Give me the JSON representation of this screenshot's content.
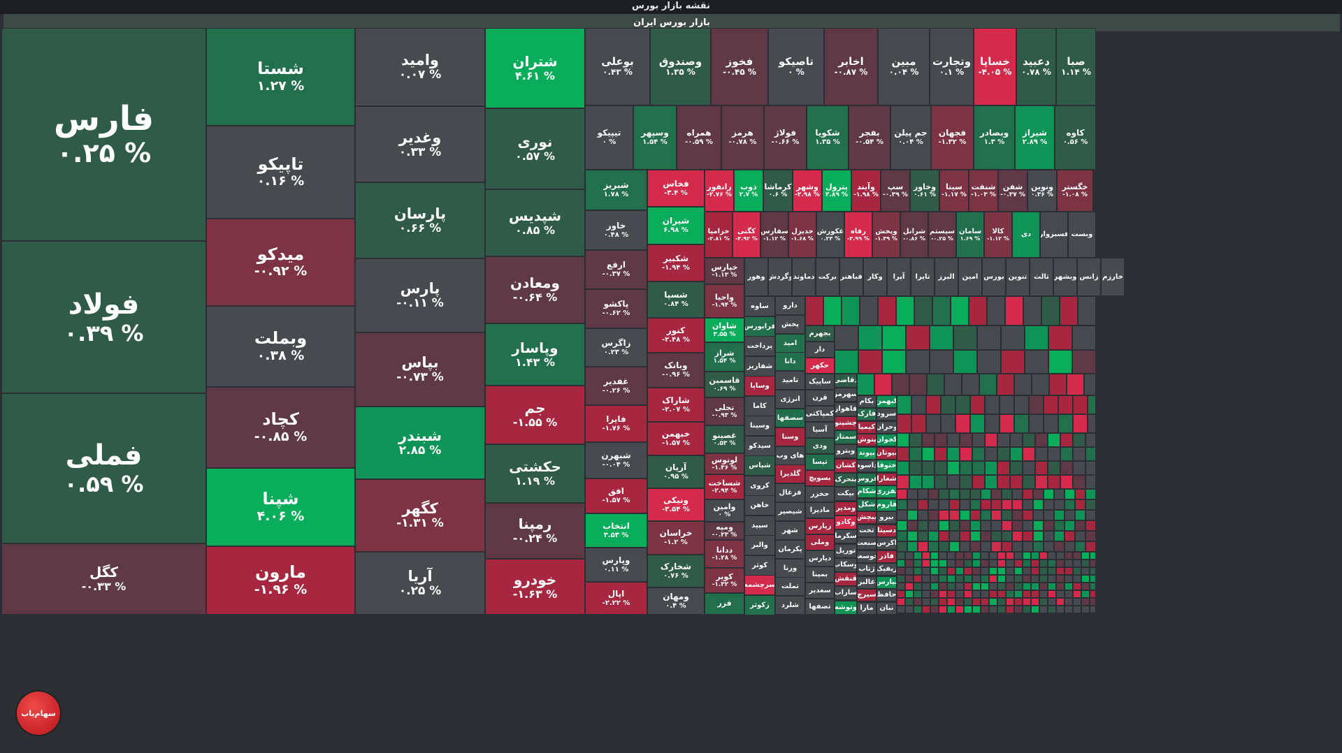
{
  "header": {
    "title": "نقشه بازار بورس",
    "subtitle": "بازار بورس ایران"
  },
  "logo": {
    "text": "سهام‌یاب"
  },
  "colors": {
    "strong_green": "#08ad5c",
    "green": "#0f9457",
    "dark_green": "#2f5b48",
    "neutral": "#474a4f",
    "dark_red": "#5f3945",
    "red": "#7d3344",
    "strong_red": "#d42a4b"
  },
  "tiles": [
    {
      "symbol": "فارس",
      "change": "۰.۲۵ %",
      "color": "g1"
    },
    {
      "symbol": "فولاد",
      "change": "۰.۳۹ %",
      "color": "g1"
    },
    {
      "symbol": "فملی",
      "change": "۰.۵۹ %",
      "color": "g1"
    },
    {
      "symbol": "کگل",
      "change": "-۰.۳۳ %",
      "color": "r1"
    },
    {
      "symbol": "شستا",
      "change": "۱.۲۷ %",
      "color": "g2"
    },
    {
      "symbol": "تاپیکو",
      "change": "۰.۱۶ %",
      "color": "n"
    },
    {
      "symbol": "میدکو",
      "change": "-۰.۹۲ %",
      "color": "r2"
    },
    {
      "symbol": "وبملت",
      "change": "۰.۳۸ %",
      "color": "n"
    },
    {
      "symbol": "کچاد",
      "change": "-۰.۸۵ %",
      "color": "r1"
    },
    {
      "symbol": "شپنا",
      "change": "۴.۰۶ %",
      "color": "g4"
    },
    {
      "symbol": "مارون",
      "change": "-۱.۹۶ %",
      "color": "r3"
    },
    {
      "symbol": "وامید",
      "change": "۰.۰۷ %",
      "color": "n"
    },
    {
      "symbol": "وغدیر",
      "change": "۰.۳۳ %",
      "color": "n"
    },
    {
      "symbol": "پارسان",
      "change": "۰.۶۶ %",
      "color": "g1"
    },
    {
      "symbol": "پارس",
      "change": "-۰.۱۱ %",
      "color": "n"
    },
    {
      "symbol": "بپاس",
      "change": "-۰.۷۳ %",
      "color": "r1"
    },
    {
      "symbol": "شبندر",
      "change": "۲.۸۵ %",
      "color": "g3"
    },
    {
      "symbol": "کگهر",
      "change": "-۱.۳۱ %",
      "color": "r2"
    },
    {
      "symbol": "آریا",
      "change": "۰.۲۵ %",
      "color": "n"
    },
    {
      "symbol": "شتران",
      "change": "۴.۶۱ %",
      "color": "g4"
    },
    {
      "symbol": "نوری",
      "change": "۰.۵۷ %",
      "color": "g1"
    },
    {
      "symbol": "شپدیس",
      "change": "۰.۸۵ %",
      "color": "g1"
    },
    {
      "symbol": "ومعادن",
      "change": "-۰.۶۴ %",
      "color": "r1"
    },
    {
      "symbol": "وپاسار",
      "change": "۱.۴۳ %",
      "color": "g2"
    },
    {
      "symbol": "جم",
      "change": "-۱.۵۵ %",
      "color": "r3"
    },
    {
      "symbol": "حکشتی",
      "change": "۱.۱۹ %",
      "color": "g1"
    },
    {
      "symbol": "رمپنا",
      "change": "-۰.۲۴ %",
      "color": "r1"
    },
    {
      "symbol": "خودرو",
      "change": "-۱.۶۳ %",
      "color": "r3"
    },
    {
      "symbol": "بوعلی",
      "change": "۰.۴۳ %",
      "color": "n"
    },
    {
      "symbol": "وصندوق",
      "change": "۱.۳۵ %",
      "color": "g1"
    },
    {
      "symbol": "فخوز",
      "change": "-۰.۴۵ %",
      "color": "r1"
    },
    {
      "symbol": "تاصیکو",
      "change": "۰ %",
      "color": "n"
    },
    {
      "symbol": "اخابر",
      "change": "-۰.۸۷ %",
      "color": "r1"
    },
    {
      "symbol": "مبین",
      "change": "۰.۰۴ %",
      "color": "n"
    },
    {
      "symbol": "وتجارت",
      "change": "۰.۱ %",
      "color": "n"
    },
    {
      "symbol": "خساپا",
      "change": "-۴.۰۵ %",
      "color": "r4"
    },
    {
      "symbol": "دعبید",
      "change": "۰.۷۸ %",
      "color": "g1"
    },
    {
      "symbol": "صبا",
      "change": "۱.۱۴ %",
      "color": "g1"
    },
    {
      "symbol": "تیپیکو",
      "change": "۰ %",
      "color": "n"
    },
    {
      "symbol": "وسپهر",
      "change": "۱.۵۴ %",
      "color": "g2"
    },
    {
      "symbol": "همراه",
      "change": "-۰.۵۹ %",
      "color": "r1"
    },
    {
      "symbol": "هرمز",
      "change": "-۰.۷۸ %",
      "color": "r1"
    },
    {
      "symbol": "فولاژ",
      "change": "-۰.۶۶ %",
      "color": "r1"
    },
    {
      "symbol": "شکویا",
      "change": "۱.۳۵ %",
      "color": "g2"
    },
    {
      "symbol": "بفجر",
      "change": "-۰.۵۴ %",
      "color": "r1"
    },
    {
      "symbol": "جم پیلن",
      "change": "۰.۰۴ %",
      "color": "n"
    },
    {
      "symbol": "فجهان",
      "change": "-۱.۳۲ %",
      "color": "r2"
    },
    {
      "symbol": "وبصادر",
      "change": "۱.۳ %",
      "color": "g2"
    },
    {
      "symbol": "شیراز",
      "change": "۲.۸۹ %",
      "color": "g3"
    },
    {
      "symbol": "کاوه",
      "change": "۰.۵۶ %",
      "color": "g1"
    },
    {
      "symbol": "شبریز",
      "change": "۱.۷۸ %",
      "color": "g2"
    },
    {
      "symbol": "خاور",
      "change": "۰.۴۸ %",
      "color": "n"
    },
    {
      "symbol": "ارفع",
      "change": "-۰.۳۷ %",
      "color": "r1"
    },
    {
      "symbol": "پاکشو",
      "change": "-۰.۶۲ %",
      "color": "r1"
    },
    {
      "symbol": "زاگرس",
      "change": "۰.۲۳ %",
      "color": "n"
    },
    {
      "symbol": "غفدیر",
      "change": "-۰.۲۶ %",
      "color": "r1"
    },
    {
      "symbol": "فایرا",
      "change": "-۱.۷۶ %",
      "color": "r3"
    },
    {
      "symbol": "شبهرن",
      "change": "-۰.۰۴ %",
      "color": "n"
    },
    {
      "symbol": "افق",
      "change": "-۱.۵۷ %",
      "color": "r3"
    },
    {
      "symbol": "انتخاب",
      "change": "۳.۵۳ %",
      "color": "g4"
    },
    {
      "symbol": "وپارس",
      "change": "۰.۱۱ %",
      "color": "n"
    },
    {
      "symbol": "اپال",
      "change": "-۲.۲۲ %",
      "color": "r3"
    },
    {
      "symbol": "فخاس",
      "change": "-۳.۴ %",
      "color": "r4"
    },
    {
      "symbol": "شیران",
      "change": "۶.۹۸ %",
      "color": "g4"
    },
    {
      "symbol": "شکبیر",
      "change": "-۱.۹۴ %",
      "color": "r3"
    },
    {
      "symbol": "شسپا",
      "change": "۰.۸۴ %",
      "color": "g1"
    },
    {
      "symbol": "کنور",
      "change": "-۲.۴۸ %",
      "color": "r3"
    },
    {
      "symbol": "وبانک",
      "change": "-۰.۹۶ %",
      "color": "r1"
    },
    {
      "symbol": "شاراک",
      "change": "-۲.۰۷ %",
      "color": "r3"
    },
    {
      "symbol": "خبهمن",
      "change": "-۱.۵۷ %",
      "color": "r3"
    },
    {
      "symbol": "آریان",
      "change": "۰.۹۵ %",
      "color": "g1"
    },
    {
      "symbol": "ونیکی",
      "change": "-۳.۵۴ %",
      "color": "r4"
    },
    {
      "symbol": "خراسان",
      "change": "-۱.۲ %",
      "color": "r2"
    },
    {
      "symbol": "شخارک",
      "change": "۰.۷۶ %",
      "color": "g1"
    },
    {
      "symbol": "ومهان",
      "change": "۰.۴ %",
      "color": "n"
    }
  ],
  "small_tiles": [
    {
      "symbol": "رانفور",
      "change": "-۲.۷۶ %",
      "color": "r4"
    },
    {
      "symbol": "ذوب",
      "change": "۲.۷ %",
      "color": "g4"
    },
    {
      "symbol": "کرماشا",
      "change": "۰.۶ %",
      "color": "g1"
    },
    {
      "symbol": "وشهر",
      "change": "-۲.۹۸ %",
      "color": "r4"
    },
    {
      "symbol": "پترول",
      "change": "۲.۸۹ %",
      "color": "g4"
    },
    {
      "symbol": "وآیند",
      "change": "-۱.۹۸ %",
      "color": "r3"
    },
    {
      "symbol": "سپ",
      "change": "-۰.۳۹ %",
      "color": "r1"
    },
    {
      "symbol": "وخاور",
      "change": "۰.۶۱ %",
      "color": "g1"
    },
    {
      "symbol": "سیتا",
      "change": "-۱.۱۷ %",
      "color": "r2"
    },
    {
      "symbol": "شنفت",
      "change": "-۱.۰۳ %",
      "color": "r2"
    },
    {
      "symbol": "شفن",
      "change": "-۰.۳۷ %",
      "color": "r1"
    },
    {
      "symbol": "ونوین",
      "change": "۰.۳۶ %",
      "color": "n"
    },
    {
      "symbol": "خگستر",
      "change": "-۱.۰۸ %",
      "color": "r2"
    },
    {
      "symbol": "خزامیا",
      "change": "-۲.۸۱ %",
      "color": "r3"
    },
    {
      "symbol": "کگنی",
      "change": "-۲.۹۲ %",
      "color": "r4"
    },
    {
      "symbol": "سفارس",
      "change": "-۱.۱۲ %",
      "color": "r1"
    },
    {
      "symbol": "خدیزل",
      "change": "-۱.۶۸ %",
      "color": "r2"
    },
    {
      "symbol": "غکورش",
      "change": "۰.۲۳ %",
      "color": "n"
    },
    {
      "symbol": "رفاه",
      "change": "-۲.۹۹ %",
      "color": "r4"
    },
    {
      "symbol": "وپخش",
      "change": "-۱.۳۹ %",
      "color": "r2"
    },
    {
      "symbol": "شرانل",
      "change": "-۰.۸۶ %",
      "color": "r1"
    },
    {
      "symbol": "سیستم",
      "change": "-۰.۲۵ %",
      "color": "r1"
    },
    {
      "symbol": "سامان",
      "change": "۱.۶۹ %",
      "color": "g2"
    },
    {
      "symbol": "کالا",
      "change": "-۱.۱۲ %",
      "color": "r2"
    },
    {
      "symbol": "دی",
      "change": "",
      "color": "g3"
    },
    {
      "symbol": "فسبزوار",
      "change": "",
      "color": "n"
    },
    {
      "symbol": "وبست",
      "change": "",
      "color": "n"
    }
  ],
  "col_e": [
    {
      "symbol": "خپارس",
      "change": "-۱.۱۳ %",
      "color": "r1"
    },
    {
      "symbol": "واحیا",
      "change": "-۱.۹۴ %",
      "color": "r2"
    },
    {
      "symbol": "شاوان",
      "change": "۳.۵۵ %",
      "color": "g4"
    },
    {
      "symbol": "شراز",
      "change": "۱.۵۴ %",
      "color": "g2"
    },
    {
      "symbol": "قاسمین",
      "change": "۰.۶۹ %",
      "color": "g1"
    },
    {
      "symbol": "تجلی",
      "change": "-۰.۹۳ %",
      "color": "r1"
    },
    {
      "symbol": "غصینو",
      "change": "۰.۵۳ %",
      "color": "g1"
    },
    {
      "symbol": "لوتوس",
      "change": "-۱.۳۶ %",
      "color": "r2"
    },
    {
      "symbol": "شساخت",
      "change": "-۲.۹۴ %",
      "color": "r3"
    },
    {
      "symbol": "وامین",
      "change": "۰ %",
      "color": "n"
    },
    {
      "symbol": "ومپه",
      "change": "-۰.۲۳ %",
      "color": "r1"
    },
    {
      "symbol": "ددانا",
      "change": "-۱.۲۸ %",
      "color": "r2"
    },
    {
      "symbol": "کویر",
      "change": "-۱.۳۲ %",
      "color": "r2"
    },
    {
      "symbol": "فزر",
      "change": "",
      "color": "g2"
    }
  ],
  "mini_labels_row": [
    "وهور",
    "وگردش",
    "دماوند",
    "برکت",
    "فباهنر",
    "وکار",
    "آپرا",
    "تاپرا",
    "البرز",
    "امین",
    "بورس",
    "تنوین",
    "ثالث",
    "وبشهر",
    "زانس",
    "خارزم"
  ],
  "mini_col_a": [
    "ساوه",
    "فرابورس",
    "پرداخت",
    "شفاریز",
    "وساپا",
    "کاما",
    "وسینا",
    "سیدکو",
    "شپاس",
    "کروی",
    "خاهن",
    "سپید",
    "والبر",
    "کوثر",
    "سرچشمه",
    "زکوثر"
  ],
  "mini_col_b": [
    "دارو",
    "پخش",
    "امید",
    "دانا",
    "تامید",
    "انرژی",
    "سصفها",
    "وسنا",
    "های وب",
    "گلدیرا",
    "فزغال",
    "شیصیر",
    "شهر",
    "پکرمان",
    "ورنا",
    "تملت",
    "شلرد"
  ],
  "mini_col_c": [
    "بجهرم",
    "دار",
    "حکهر",
    "ساپیک",
    "قرن",
    "کمپاکتی",
    "آسیا",
    "ودی",
    "تپسا",
    "بسویچ",
    "حخزر",
    "مادیرا",
    "زپارس",
    "وملی",
    "دپارس",
    "بمپنا",
    "سغدیر",
    "تصفها"
  ],
  "mini_col_d": [
    "دقاضی",
    "سهرمز",
    "فاهواز",
    "چشینو",
    "سمتاز",
    "وبترو",
    "کشان",
    "بتحرک",
    "بپکت",
    "ومدیر",
    "وکادو",
    "سکرما",
    "توریل",
    "وسکاب",
    "قنقش",
    "ساراب",
    "وتوشه"
  ],
  "mini_col_e": [
    "بکام",
    "فارک",
    "کیمیا",
    "پنوش",
    "پیوند",
    "داسوه",
    "فروس",
    "شکام",
    "شکل",
    "پیچش",
    "تخت",
    "صنعت",
    "خوسعه",
    "ژتاب",
    "غالبر",
    "سیرچ",
    "مارا"
  ],
  "mini_col_f": [
    "کبهمن",
    "سرود",
    "وحران",
    "کجوان",
    "بیوتان",
    "ختوقا",
    "شغارا",
    "تفزری",
    "قاروم",
    "بیرو",
    "دسیتا",
    "اکرس",
    "فاذر",
    "زیفیک",
    "نیارس",
    "حافظ",
    "نبان"
  ]
}
